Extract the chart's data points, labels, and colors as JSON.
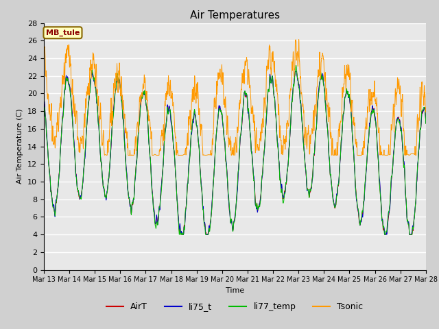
{
  "title": "Air Temperatures",
  "xlabel": "Time",
  "ylabel": "Air Temperature (C)",
  "ylim": [
    0,
    28
  ],
  "yticks": [
    0,
    2,
    4,
    6,
    8,
    10,
    12,
    14,
    16,
    18,
    20,
    22,
    24,
    26,
    28
  ],
  "x_tick_labels": [
    "Mar 13",
    "Mar 14",
    "Mar 15",
    "Mar 16",
    "Mar 17",
    "Mar 18",
    "Mar 19",
    "Mar 20",
    "Mar 21",
    "Mar 22",
    "Mar 23",
    "Mar 24",
    "Mar 25",
    "Mar 26",
    "Mar 27",
    "Mar 28"
  ],
  "site_label": "MB_tule",
  "bg_color": "#e8e8e8",
  "line_colors": {
    "AirT": "#cc0000",
    "li75_t": "#0000cc",
    "li77_temp": "#00bb00",
    "Tsonic": "#ff9900"
  }
}
